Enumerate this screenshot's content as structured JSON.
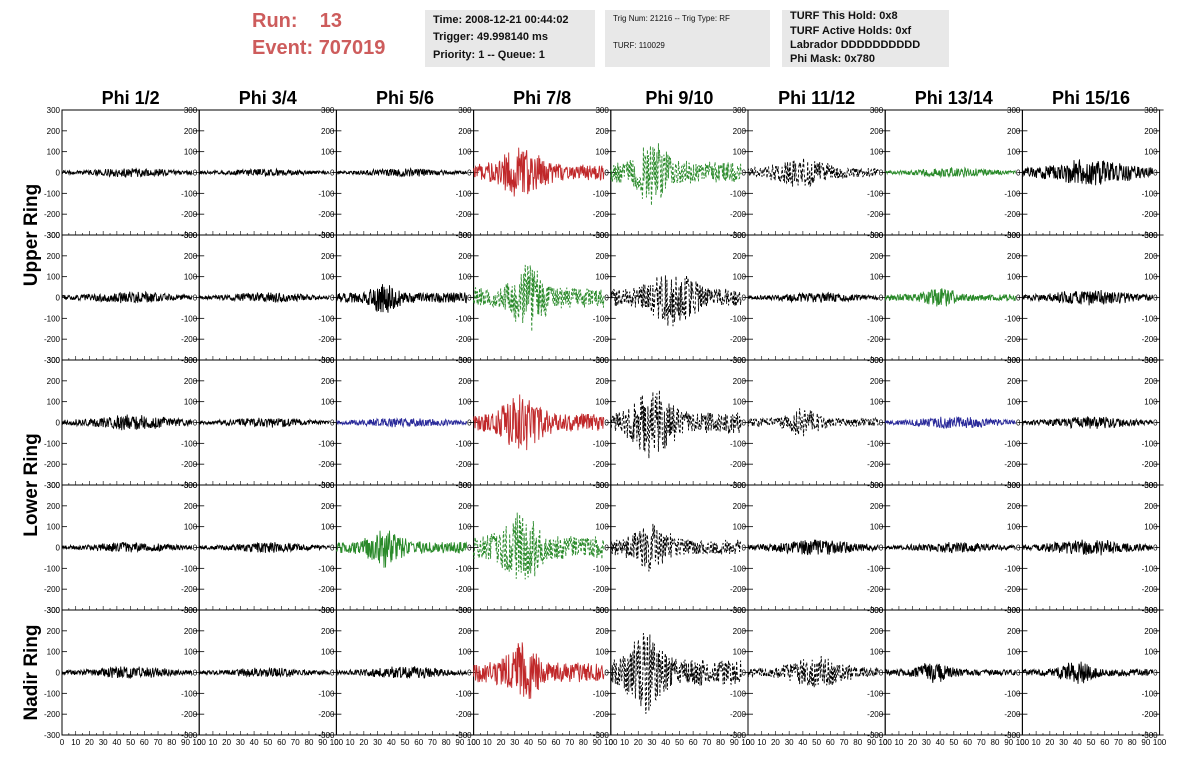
{
  "header": {
    "run_label": "Run:",
    "run_value": "13",
    "event_label": "Event:",
    "event_value": "707019"
  },
  "trigger_box": {
    "time": "Time: 2008-12-21 00:44:02",
    "trigger": "Trigger: 49.998140 ms",
    "priority": "Priority: 1 -- Queue: 1"
  },
  "trig_box": {
    "trig_num": "Trig Num: 21216 -- Trig Type: RF",
    "turf": "TURF: 110029"
  },
  "turf_box": {
    "this_hold": "TURF This Hold: 0x8",
    "active_holds": "TURF Active Holds: 0xf",
    "labrador": "Labrador DDDDDDDDDD",
    "phi_mask": "Phi Mask: 0x780"
  },
  "colors": {
    "normal": "#000000",
    "triggered_red": "#c0282a",
    "triggered_green": "#2a8a2a",
    "masked_blue": "#2a2a9a",
    "header_red": "#cd5c5c",
    "box_bg": "#e8e8e8"
  },
  "chart_data": {
    "type": "line",
    "title": "",
    "columns": [
      "Phi 1/2",
      "Phi 3/4",
      "Phi 5/6",
      "Phi 7/8",
      "Phi 9/10",
      "Phi 11/12",
      "Phi 13/14",
      "Phi 15/16"
    ],
    "ring_labels": [
      {
        "label": "Upper Ring",
        "rows": [
          0,
          1
        ]
      },
      {
        "label": "Lower Ring",
        "rows": [
          2,
          3
        ]
      },
      {
        "label": "Nadir Ring",
        "rows": [
          4
        ]
      }
    ],
    "xlim": [
      0,
      100
    ],
    "ylim": [
      -300,
      300
    ],
    "x_ticks": [
      0,
      10,
      20,
      30,
      40,
      50,
      60,
      70,
      80,
      90,
      100
    ],
    "y_ticks": [
      -300,
      -200,
      -100,
      0,
      100,
      200,
      300
    ],
    "x_range_of_trace": [
      0,
      95
    ],
    "panels": [
      [
        {
          "amp": 28,
          "color": "normal",
          "dash": false,
          "center": 50,
          "width": 60
        },
        {
          "amp": 22,
          "color": "normal",
          "dash": false,
          "center": 50,
          "width": 60
        },
        {
          "amp": 24,
          "color": "normal",
          "dash": false,
          "center": 50,
          "width": 60
        },
        {
          "amp": 140,
          "color": "triggered_red",
          "dash": false,
          "center": 35,
          "width": 35
        },
        {
          "amp": 200,
          "color": "triggered_green",
          "dash": true,
          "center": 30,
          "width": 25
        },
        {
          "amp": 85,
          "color": "normal",
          "dash": true,
          "center": 40,
          "width": 40
        },
        {
          "amp": 28,
          "color": "triggered_green",
          "dash": false,
          "center": 50,
          "width": 60
        },
        {
          "amp": 75,
          "color": "normal",
          "dash": false,
          "center": 50,
          "width": 60
        }
      ],
      [
        {
          "amp": 35,
          "color": "normal",
          "dash": false,
          "center": 50,
          "width": 60
        },
        {
          "amp": 30,
          "color": "normal",
          "dash": false,
          "center": 50,
          "width": 60
        },
        {
          "amp": 95,
          "color": "normal",
          "dash": false,
          "center": 35,
          "width": 20
        },
        {
          "amp": 190,
          "color": "triggered_green",
          "dash": true,
          "center": 40,
          "width": 25
        },
        {
          "amp": 160,
          "color": "normal",
          "dash": true,
          "center": 45,
          "width": 35
        },
        {
          "amp": 30,
          "color": "normal",
          "dash": false,
          "center": 50,
          "width": 60
        },
        {
          "amp": 65,
          "color": "triggered_green",
          "dash": false,
          "center": 40,
          "width": 20
        },
        {
          "amp": 45,
          "color": "normal",
          "dash": false,
          "center": 50,
          "width": 60
        }
      ],
      [
        {
          "amp": 45,
          "color": "normal",
          "dash": false,
          "center": 50,
          "width": 60
        },
        {
          "amp": 28,
          "color": "normal",
          "dash": false,
          "center": 50,
          "width": 60
        },
        {
          "amp": 30,
          "color": "masked_blue",
          "dash": false,
          "center": 50,
          "width": 60
        },
        {
          "amp": 160,
          "color": "triggered_red",
          "dash": false,
          "center": 35,
          "width": 30
        },
        {
          "amp": 200,
          "color": "normal",
          "dash": true,
          "center": 30,
          "width": 30
        },
        {
          "amp": 80,
          "color": "normal",
          "dash": true,
          "center": 40,
          "width": 25
        },
        {
          "amp": 35,
          "color": "masked_blue",
          "dash": false,
          "center": 50,
          "width": 60
        },
        {
          "amp": 35,
          "color": "normal",
          "dash": false,
          "center": 50,
          "width": 60
        }
      ],
      [
        {
          "amp": 30,
          "color": "normal",
          "dash": false,
          "center": 50,
          "width": 60
        },
        {
          "amp": 30,
          "color": "normal",
          "dash": false,
          "center": 50,
          "width": 60
        },
        {
          "amp": 110,
          "color": "triggered_green",
          "dash": false,
          "center": 35,
          "width": 25
        },
        {
          "amp": 210,
          "color": "triggered_green",
          "dash": true,
          "center": 35,
          "width": 30
        },
        {
          "amp": 140,
          "color": "normal",
          "dash": true,
          "center": 30,
          "width": 30
        },
        {
          "amp": 45,
          "color": "normal",
          "dash": false,
          "center": 50,
          "width": 60
        },
        {
          "amp": 30,
          "color": "normal",
          "dash": false,
          "center": 50,
          "width": 60
        },
        {
          "amp": 45,
          "color": "normal",
          "dash": false,
          "center": 50,
          "width": 60
        }
      ],
      [
        {
          "amp": 35,
          "color": "normal",
          "dash": false,
          "center": 50,
          "width": 60
        },
        {
          "amp": 28,
          "color": "normal",
          "dash": false,
          "center": 50,
          "width": 60
        },
        {
          "amp": 35,
          "color": "normal",
          "dash": false,
          "center": 50,
          "width": 60
        },
        {
          "amp": 180,
          "color": "triggered_red",
          "dash": false,
          "center": 35,
          "width": 25
        },
        {
          "amp": 240,
          "color": "normal",
          "dash": true,
          "center": 25,
          "width": 25
        },
        {
          "amp": 90,
          "color": "normal",
          "dash": true,
          "center": 50,
          "width": 40
        },
        {
          "amp": 60,
          "color": "normal",
          "dash": false,
          "center": 35,
          "width": 25
        },
        {
          "amp": 65,
          "color": "normal",
          "dash": false,
          "center": 40,
          "width": 25
        }
      ]
    ]
  }
}
